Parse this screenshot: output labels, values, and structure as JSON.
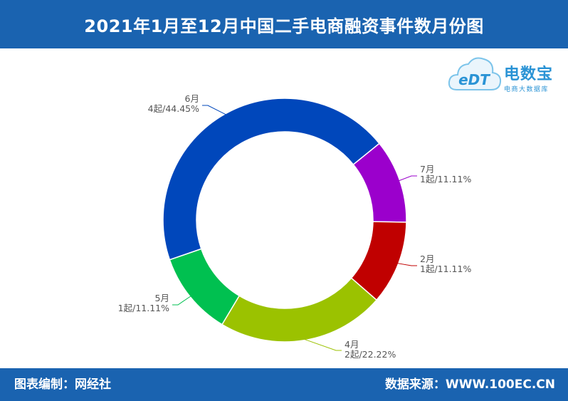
{
  "header": {
    "title": "2021年1月至12月中国二手电商融资事件数月份图"
  },
  "footer": {
    "left": "图表编制：网经社",
    "right": "数据来源：WWW.100EC.CN"
  },
  "logo": {
    "name": "电数宝",
    "sub": "电商大数据库",
    "mark": "eDT",
    "color": "#2a93d5",
    "icon": "cloud-logo-icon"
  },
  "chart_data": {
    "type": "pie",
    "donut": true,
    "slices": [
      {
        "month": "7月",
        "value": 1,
        "percent": "11.11%",
        "label": "1起/11.11%",
        "color": "#9b00cc"
      },
      {
        "month": "2月",
        "value": 1,
        "percent": "11.11%",
        "label": "1起/11.11%",
        "color": "#c00000"
      },
      {
        "month": "4月",
        "value": 2,
        "percent": "22.22%",
        "label": "2起/22.22%",
        "color": "#9bc200"
      },
      {
        "month": "5月",
        "value": 1,
        "percent": "11.11%",
        "label": "1起/11.11%",
        "color": "#00c050"
      },
      {
        "month": "6月",
        "value": 4,
        "percent": "44.45%",
        "label": "4起/44.45%",
        "color": "#0047bb"
      }
    ],
    "start_angle_deg": 51
  }
}
